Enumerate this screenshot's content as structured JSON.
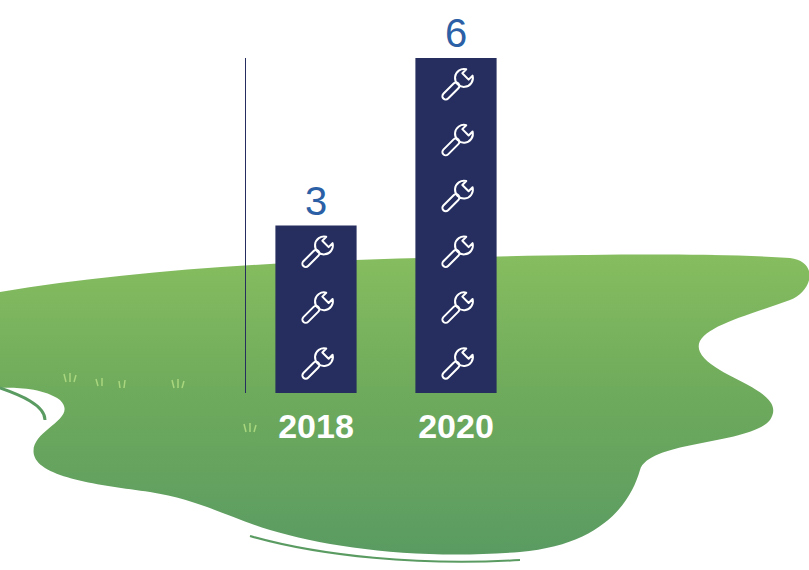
{
  "chart_data": {
    "type": "bar",
    "categories": [
      "2018",
      "2020"
    ],
    "values": [
      3,
      6
    ],
    "color": "#252e5e",
    "ylim": [
      0,
      6
    ],
    "yticks": [],
    "grid": false,
    "data_labels": true,
    "tick_labels": "x",
    "marker": "wrench"
  }
}
